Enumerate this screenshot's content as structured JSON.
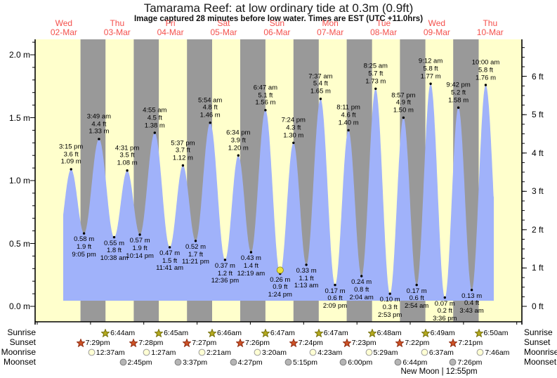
{
  "title": "Tamarama Reef: at low  ordinary tide at 0.3m (0.9ft)",
  "subtitle": "Image captured 28 minutes before low water. Times are EST (UTC +11.0hrs)",
  "days": [
    {
      "name": "Wed",
      "date": "02-Mar"
    },
    {
      "name": "Thu",
      "date": "03-Mar"
    },
    {
      "name": "Fri",
      "date": "04-Mar"
    },
    {
      "name": "Sat",
      "date": "05-Mar"
    },
    {
      "name": "Sun",
      "date": "06-Mar"
    },
    {
      "name": "Mon",
      "date": "07-Mar"
    },
    {
      "name": "Tue",
      "date": "08-Mar"
    },
    {
      "name": "Wed",
      "date": "09-Mar"
    },
    {
      "name": "Thu",
      "date": "10-Mar"
    }
  ],
  "axes": {
    "left_ticks": [
      "0.0 m",
      "0.5 m",
      "1.0 m",
      "1.5 m",
      "2.0 m"
    ],
    "right_ticks": [
      "0 ft",
      "1 ft",
      "2 ft",
      "3 ft",
      "4 ft",
      "5 ft",
      "6 ft"
    ]
  },
  "chart_data": {
    "type": "area",
    "title": "Tamarama Reef: at low  ordinary tide at 0.3m (0.9ft)",
    "x_categories": [
      "Wed 02-Mar",
      "Thu 03-Mar",
      "Fri 04-Mar",
      "Sat 05-Mar",
      "Sun 06-Mar",
      "Mon 07-Mar",
      "Tue 08-Mar",
      "Wed 09-Mar",
      "Thu 10-Mar"
    ],
    "ylabel_left_unit": "m",
    "ylabel_right_unit": "ft",
    "ylim_m": [
      0.0,
      2.0
    ],
    "ylim_ft": [
      0,
      6
    ],
    "tide_events": [
      {
        "day": 0,
        "time": "3:15 pm",
        "type": "high",
        "height_m": 1.09,
        "height_ft": 3.6
      },
      {
        "day": 0,
        "time": "9:05 pm",
        "type": "low",
        "height_m": 0.58,
        "height_ft": 1.9
      },
      {
        "day": 1,
        "time": "3:49 am",
        "type": "high",
        "height_m": 1.33,
        "height_ft": 4.4
      },
      {
        "day": 1,
        "time": "10:38 am",
        "type": "low",
        "height_m": 0.55,
        "height_ft": 1.8
      },
      {
        "day": 1,
        "time": "4:31 pm",
        "type": "high",
        "height_m": 1.08,
        "height_ft": 3.5
      },
      {
        "day": 1,
        "time": "10:14 pm",
        "type": "low",
        "height_m": 0.57,
        "height_ft": 1.9
      },
      {
        "day": 2,
        "time": "4:55 am",
        "type": "high",
        "height_m": 1.38,
        "height_ft": 4.5
      },
      {
        "day": 2,
        "time": "11:41 am",
        "type": "low",
        "height_m": 0.47,
        "height_ft": 1.5
      },
      {
        "day": 2,
        "time": "5:37 pm",
        "type": "high",
        "height_m": 1.12,
        "height_ft": 3.7
      },
      {
        "day": 2,
        "time": "11:21 pm",
        "type": "low",
        "height_m": 0.52,
        "height_ft": 1.7
      },
      {
        "day": 3,
        "time": "5:54 am",
        "type": "high",
        "height_m": 1.46,
        "height_ft": 4.8
      },
      {
        "day": 3,
        "time": "12:36 pm",
        "type": "low",
        "height_m": 0.37,
        "height_ft": 1.2
      },
      {
        "day": 3,
        "time": "6:34 pm",
        "type": "high",
        "height_m": 1.2,
        "height_ft": 3.9
      },
      {
        "day": 4,
        "time": "12:19 am",
        "type": "low",
        "height_m": 0.43,
        "height_ft": 1.4
      },
      {
        "day": 4,
        "time": "6:47 am",
        "type": "high",
        "height_m": 1.56,
        "height_ft": 5.1
      },
      {
        "day": 4,
        "time": "1:24 pm",
        "type": "low",
        "height_m": 0.26,
        "height_ft": 0.9,
        "now": true
      },
      {
        "day": 4,
        "time": "7:24 pm",
        "type": "high",
        "height_m": 1.3,
        "height_ft": 4.3
      },
      {
        "day": 5,
        "time": "1:13 am",
        "type": "low",
        "height_m": 0.33,
        "height_ft": 1.1
      },
      {
        "day": 5,
        "time": "7:37 am",
        "type": "high",
        "height_m": 1.65,
        "height_ft": 5.4
      },
      {
        "day": 5,
        "time": "2:09 pm",
        "type": "low",
        "height_m": 0.17,
        "height_ft": 0.6
      },
      {
        "day": 5,
        "time": "8:11 pm",
        "type": "high",
        "height_m": 1.4,
        "height_ft": 4.6
      },
      {
        "day": 6,
        "time": "2:04 am",
        "type": "low",
        "height_m": 0.24,
        "height_ft": 0.8
      },
      {
        "day": 6,
        "time": "8:25 am",
        "type": "high",
        "height_m": 1.73,
        "height_ft": 5.7
      },
      {
        "day": 6,
        "time": "2:53 pm",
        "type": "low",
        "height_m": 0.1,
        "height_ft": 0.3
      },
      {
        "day": 6,
        "time": "8:57 pm",
        "type": "high",
        "height_m": 1.5,
        "height_ft": 4.9
      },
      {
        "day": 7,
        "time": "2:54 am",
        "type": "low",
        "height_m": 0.17,
        "height_ft": 0.6
      },
      {
        "day": 7,
        "time": "9:12 am",
        "type": "high",
        "height_m": 1.77,
        "height_ft": 5.8
      },
      {
        "day": 7,
        "time": "3:36 pm",
        "type": "low",
        "height_m": 0.07,
        "height_ft": 0.2
      },
      {
        "day": 7,
        "time": "9:42 pm",
        "type": "high",
        "height_m": 1.58,
        "height_ft": 5.2
      },
      {
        "day": 8,
        "time": "3:43 am",
        "type": "low",
        "height_m": 0.13,
        "height_ft": 0.4
      },
      {
        "day": 8,
        "time": "10:00 am",
        "type": "high",
        "height_m": 1.76,
        "height_ft": 5.8
      }
    ]
  },
  "astro": {
    "rows": [
      {
        "label": "Sunrise",
        "icon": "sunrise-star-icon",
        "icon_fill": "#b5aa1f",
        "icon_stroke": "#75700a",
        "events": [
          {
            "day": 1,
            "time": "6:44am"
          },
          {
            "day": 2,
            "time": "6:45am"
          },
          {
            "day": 3,
            "time": "6:46am"
          },
          {
            "day": 4,
            "time": "6:47am"
          },
          {
            "day": 5,
            "time": "6:47am"
          },
          {
            "day": 6,
            "time": "6:48am"
          },
          {
            "day": 7,
            "time": "6:49am"
          },
          {
            "day": 8,
            "time": "6:50am"
          }
        ]
      },
      {
        "label": "Sunset",
        "icon": "sunset-star-icon",
        "icon_fill": "#ce5226",
        "icon_stroke": "#8f2c10",
        "events": [
          {
            "day": 0,
            "time": "7:29pm"
          },
          {
            "day": 1,
            "time": "7:28pm"
          },
          {
            "day": 2,
            "time": "7:27pm"
          },
          {
            "day": 3,
            "time": "7:26pm"
          },
          {
            "day": 4,
            "time": "7:24pm"
          },
          {
            "day": 5,
            "time": "7:23pm"
          },
          {
            "day": 6,
            "time": "7:22pm"
          },
          {
            "day": 7,
            "time": "7:21pm"
          }
        ]
      },
      {
        "label": "Moonrise",
        "icon": "moonrise-circle-icon",
        "icon_fill": "#ffffd4",
        "icon_stroke": "#9a9a9a",
        "events": [
          {
            "day": 1,
            "time": "12:37am"
          },
          {
            "day": 2,
            "time": "1:27am"
          },
          {
            "day": 3,
            "time": "2:21am"
          },
          {
            "day": 4,
            "time": "3:20am"
          },
          {
            "day": 5,
            "time": "4:23am"
          },
          {
            "day": 6,
            "time": "5:29am"
          },
          {
            "day": 7,
            "time": "6:37am"
          },
          {
            "day": 8,
            "time": "7:46am"
          }
        ]
      },
      {
        "label": "Moonset",
        "icon": "moonset-circle-icon",
        "icon_fill": "#b5b5b5",
        "icon_stroke": "#7e7e7e",
        "events": [
          {
            "day": 1,
            "time": "2:45pm"
          },
          {
            "day": 2,
            "time": "3:37pm"
          },
          {
            "day": 3,
            "time": "4:27pm"
          },
          {
            "day": 4,
            "time": "5:15pm"
          },
          {
            "day": 5,
            "time": "6:00pm"
          },
          {
            "day": 6,
            "time": "6:44pm"
          },
          {
            "day": 7,
            "time": "7:26pm"
          }
        ]
      }
    ],
    "note": "New Moon | 12:55pm"
  },
  "colors": {
    "day_band": "#ffffcc",
    "night_band": "#999999",
    "tide_area": "#a0b2fa",
    "day_label": "#f4504c",
    "now_marker_fill": "#ece23e",
    "now_marker_stroke": "#8a8414",
    "dot": "#000000",
    "axis": "#000000"
  }
}
